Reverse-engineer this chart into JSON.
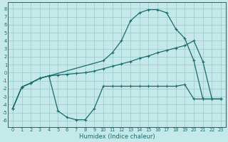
{
  "bg_color": "#c5e8e8",
  "grid_color": "#9ecece",
  "line_color": "#1a6b6b",
  "xlabel": "Humidex (Indice chaleur)",
  "xlim": [
    -0.5,
    23.5
  ],
  "ylim": [
    -6.8,
    8.8
  ],
  "xticks": [
    0,
    1,
    2,
    3,
    4,
    5,
    6,
    7,
    8,
    9,
    10,
    11,
    12,
    13,
    14,
    15,
    16,
    17,
    18,
    19,
    20,
    21,
    22,
    23
  ],
  "yticks": [
    8,
    7,
    6,
    5,
    4,
    3,
    2,
    1,
    0,
    -1,
    -2,
    -3,
    -4,
    -5,
    -6
  ],
  "line_top_x": [
    0,
    1,
    2,
    3,
    4,
    10,
    11,
    12,
    13,
    14,
    15,
    16,
    17,
    18,
    19,
    20,
    21,
    22,
    23
  ],
  "line_top_y": [
    -4.5,
    -1.8,
    -1.3,
    -0.7,
    -0.4,
    1.5,
    2.5,
    4.0,
    6.5,
    7.5,
    7.9,
    7.9,
    7.5,
    5.5,
    4.3,
    1.5,
    -3.3,
    -3.3,
    -3.3
  ],
  "line_mid_x": [
    0,
    1,
    2,
    3,
    4,
    5,
    6,
    7,
    8,
    9,
    10,
    11,
    12,
    13,
    14,
    15,
    16,
    17,
    18,
    19,
    20,
    21,
    22,
    23
  ],
  "line_mid_y": [
    -4.5,
    -1.8,
    -1.3,
    -0.7,
    -0.4,
    -0.3,
    -0.2,
    -0.1,
    0.0,
    0.2,
    0.5,
    0.8,
    1.1,
    1.4,
    1.8,
    2.1,
    2.5,
    2.8,
    3.1,
    3.4,
    4.0,
    1.4,
    -3.3,
    -3.3
  ],
  "line_bot_x": [
    0,
    1,
    2,
    3,
    4,
    5,
    6,
    7,
    8,
    9,
    10,
    11,
    12,
    13,
    14,
    15,
    16,
    17,
    18,
    19,
    20,
    21,
    22,
    23
  ],
  "line_bot_y": [
    -4.5,
    -1.8,
    -1.3,
    -0.7,
    -0.4,
    -4.8,
    -5.6,
    -5.9,
    -5.9,
    -4.5,
    -1.7,
    -1.7,
    -1.7,
    -1.7,
    -1.7,
    -1.7,
    -1.7,
    -1.7,
    -1.7,
    -1.5,
    -3.3,
    -3.3,
    -3.3,
    -3.3
  ]
}
